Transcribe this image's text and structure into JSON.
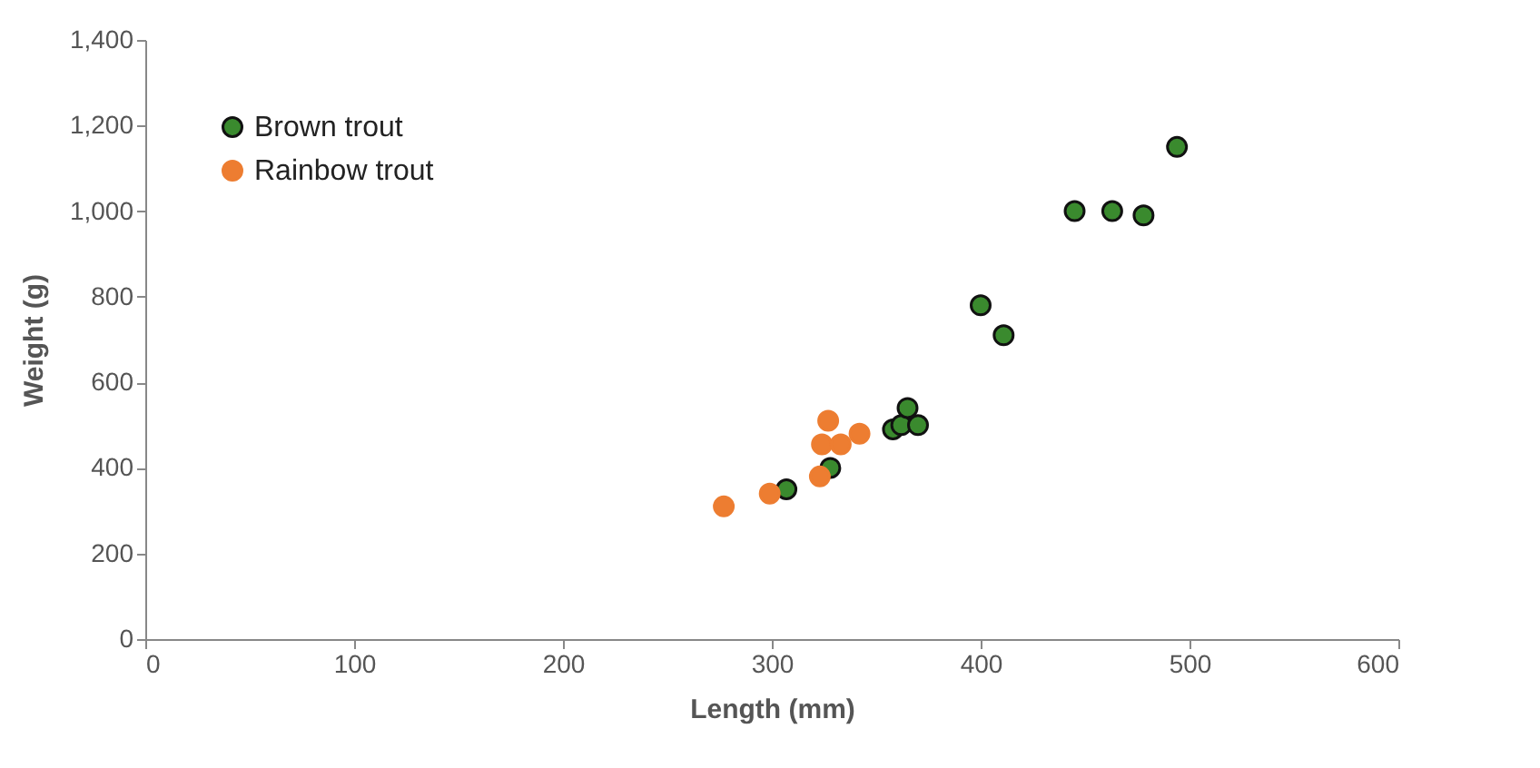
{
  "chart_data": {
    "type": "scatter",
    "xlabel": "Length (mm)",
    "ylabel": "Weight (g)",
    "xlim": [
      0,
      600
    ],
    "xticks": [
      0,
      100,
      200,
      300,
      400,
      500,
      600
    ],
    "ylim": [
      0,
      1400
    ],
    "yticks": [
      0,
      {
        "value": 200,
        "label": "200"
      },
      400,
      600,
      800,
      {
        "value": 1000,
        "label": "1,000"
      },
      {
        "value": 1200,
        "label": "1,200"
      },
      {
        "value": 1400,
        "label": "1,400"
      }
    ],
    "grid": false,
    "legend": "top left",
    "marker": "circle",
    "series": [
      {
        "name": "Brown trout",
        "color": "#3a8a2e",
        "x": [
          307,
          328,
          358,
          362,
          365,
          370,
          400,
          411,
          445,
          463,
          478,
          494
        ],
        "values": [
          350,
          400,
          490,
          500,
          540,
          500,
          780,
          710,
          1000,
          1000,
          990,
          1150
        ]
      },
      {
        "name": "Rainbow trout",
        "color": "#ed7d31",
        "x": [
          277,
          299,
          323,
          327,
          324,
          333,
          342
        ],
        "values": [
          310,
          340,
          380,
          510,
          455,
          455,
          480
        ]
      }
    ]
  }
}
